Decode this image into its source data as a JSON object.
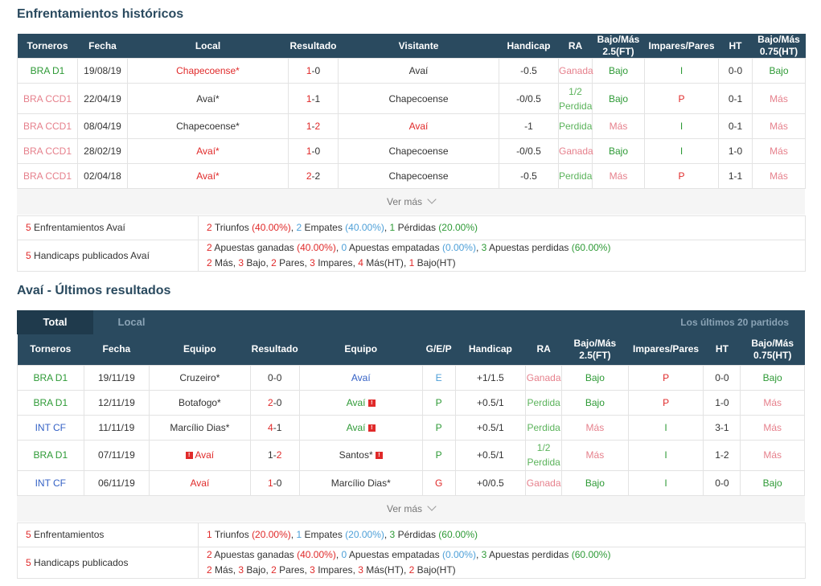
{
  "h2h": {
    "title": "Enfrentamientos históricos",
    "headers": [
      "Torneros",
      "Fecha",
      "Local",
      "Resultado",
      "Visitante",
      "Handicap",
      "RA",
      "Bajo/Más\n2.5(FT)",
      "Impares/Pares",
      "HT",
      "Bajo/Más\n0.75(HT)"
    ],
    "rows": [
      {
        "torneo": "BRA D1",
        "fecha": "19/08/19",
        "local": "Chapecoense*",
        "res_l": "1",
        "res_r": "0",
        "visitante": "Avaí",
        "handicap": "-0.5",
        "ra": "Ganada",
        "bm": "Bajo",
        "ip": "I",
        "ht": "0-0",
        "bm2": "Bajo"
      },
      {
        "torneo": "BRA CCD1",
        "fecha": "22/04/19",
        "local": "Avaí*",
        "res_l": "1",
        "res_r": "1",
        "visitante": "Chapecoense",
        "handicap": "-0/0.5",
        "ra": "1/2\nPerdida",
        "bm": "Bajo",
        "ip": "P",
        "ht": "0-1",
        "bm2": "Más"
      },
      {
        "torneo": "BRA CCD1",
        "fecha": "08/04/19",
        "local": "Chapecoense*",
        "res_l": "1",
        "res_r": "2",
        "visitante": "Avaí",
        "handicap": "-1",
        "ra": "Perdida",
        "bm": "Más",
        "ip": "I",
        "ht": "0-1",
        "bm2": "Más"
      },
      {
        "torneo": "BRA CCD1",
        "fecha": "28/02/19",
        "local": "Avaí*",
        "res_l": "1",
        "res_r": "0",
        "visitante": "Chapecoense",
        "handicap": "-0/0.5",
        "ra": "Ganada",
        "bm": "Bajo",
        "ip": "I",
        "ht": "1-0",
        "bm2": "Más"
      },
      {
        "torneo": "BRA CCD1",
        "fecha": "02/04/18",
        "local": "Avaí*",
        "res_l": "2",
        "res_r": "2",
        "visitante": "Chapecoense",
        "handicap": "-0.5",
        "ra": "Perdida",
        "bm": "Más",
        "ip": "P",
        "ht": "1-1",
        "bm2": "Más"
      }
    ],
    "more": "Ver más",
    "summary1_label": "Enfrentamientos Avaí",
    "summary1_count": "5",
    "summary1": {
      "w": "2",
      "w_lbl": "Triunfos",
      "w_pct": "(40.00%)",
      "d": "2",
      "d_lbl": "Empates",
      "d_pct": "(40.00%)",
      "l": "1",
      "l_lbl": "Pérdidas",
      "l_pct": "(20.00%)"
    },
    "summary2_label": "Handicaps publicados Avaí",
    "summary2_count": "5",
    "summary2": {
      "w": "2",
      "w_lbl": "Apuestas ganadas",
      "w_pct": "(40.00%)",
      "d": "0",
      "d_lbl": "Apuestas empatadas",
      "d_pct": "(0.00%)",
      "l": "3",
      "l_lbl": "Apuestas perdidas",
      "l_pct": "(60.00%)",
      "mas": "2",
      "mas_lbl": "Más",
      "bajo": "3",
      "bajo_lbl": "Bajo",
      "pares": "2",
      "pares_lbl": "Pares",
      "impares": "3",
      "impares_lbl": "Impares",
      "masht": "4",
      "masht_lbl": "Más(HT)",
      "bajoht": "1",
      "bajoht_lbl": "Bajo(HT)"
    }
  },
  "last": {
    "title": "Avaí - Últimos resultados",
    "tab_total": "Total",
    "tab_local": "Local",
    "last_n": "Los últimos 20 partidos",
    "headers": [
      "Torneros",
      "Fecha",
      "Equipo",
      "Resultado",
      "Equipo",
      "G/E/P",
      "Handicap",
      "RA",
      "Bajo/Más\n2.5(FT)",
      "Impares/Pares",
      "HT",
      "Bajo/Más\n0.75(HT)"
    ],
    "rows": [
      {
        "torneo": "BRA D1",
        "fecha": "19/11/19",
        "home": "Cruzeiro*",
        "res_l": "0",
        "res_r": "0",
        "away": "Avaí",
        "gep": "E",
        "handicap": "+1/1.5",
        "ra": "Ganada",
        "bm": "Bajo",
        "ip": "P",
        "ht": "0-0",
        "bm2": "Bajo"
      },
      {
        "torneo": "BRA D1",
        "fecha": "12/11/19",
        "home": "Botafogo*",
        "res_l": "2",
        "res_r": "0",
        "away": "Avaí",
        "gep": "P",
        "handicap": "+0.5/1",
        "ra": "Perdida",
        "bm": "Bajo",
        "ip": "P",
        "ht": "1-0",
        "bm2": "Más"
      },
      {
        "torneo": "INT CF",
        "fecha": "11/11/19",
        "home": "Marcílio Dias*",
        "res_l": "4",
        "res_r": "1",
        "away": "Avaí",
        "gep": "P",
        "handicap": "+0.5/1",
        "ra": "Perdida",
        "bm": "Más",
        "ip": "I",
        "ht": "3-1",
        "bm2": "Más"
      },
      {
        "torneo": "BRA D1",
        "fecha": "07/11/19",
        "home": "Avaí",
        "res_l": "1",
        "res_r": "2",
        "away": "Santos*",
        "gep": "P",
        "handicap": "+0.5/1",
        "ra": "1/2\nPerdida",
        "bm": "Más",
        "ip": "I",
        "ht": "1-2",
        "bm2": "Más"
      },
      {
        "torneo": "INT CF",
        "fecha": "06/11/19",
        "home": "Avaí",
        "res_l": "1",
        "res_r": "0",
        "away": "Marcílio Dias*",
        "gep": "G",
        "handicap": "+0/0.5",
        "ra": "Ganada",
        "bm": "Bajo",
        "ip": "I",
        "ht": "0-0",
        "bm2": "Bajo"
      }
    ],
    "more": "Ver más",
    "summary1_label": "Enfrentamientos",
    "summary1_count": "5",
    "summary1": {
      "w": "1",
      "w_lbl": "Triunfos",
      "w_pct": "(20.00%)",
      "d": "1",
      "d_lbl": "Empates",
      "d_pct": "(20.00%)",
      "l": "3",
      "l_lbl": "Pérdidas",
      "l_pct": "(60.00%)"
    },
    "summary2_label": "Handicaps publicados",
    "summary2_count": "5",
    "summary2": {
      "w": "2",
      "w_lbl": "Apuestas ganadas",
      "w_pct": "(40.00%)",
      "d": "0",
      "d_lbl": "Apuestas empatadas",
      "d_pct": "(0.00%)",
      "l": "3",
      "l_lbl": "Apuestas perdidas",
      "l_pct": "(60.00%)",
      "mas": "2",
      "mas_lbl": "Más",
      "bajo": "3",
      "bajo_lbl": "Bajo",
      "pares": "2",
      "pares_lbl": "Pares",
      "impares": "3",
      "impares_lbl": "Impares",
      "masht": "3",
      "masht_lbl": "Más(HT)",
      "bajoht": "2",
      "bajoht_lbl": "Bajo(HT)"
    }
  },
  "colors": {
    "header": "#2a4a5f",
    "green": "#2e9a36",
    "pink": "#e6808c",
    "red": "#e02a2a",
    "blue": "#3461c5",
    "lightblue": "#4ea0d8"
  }
}
